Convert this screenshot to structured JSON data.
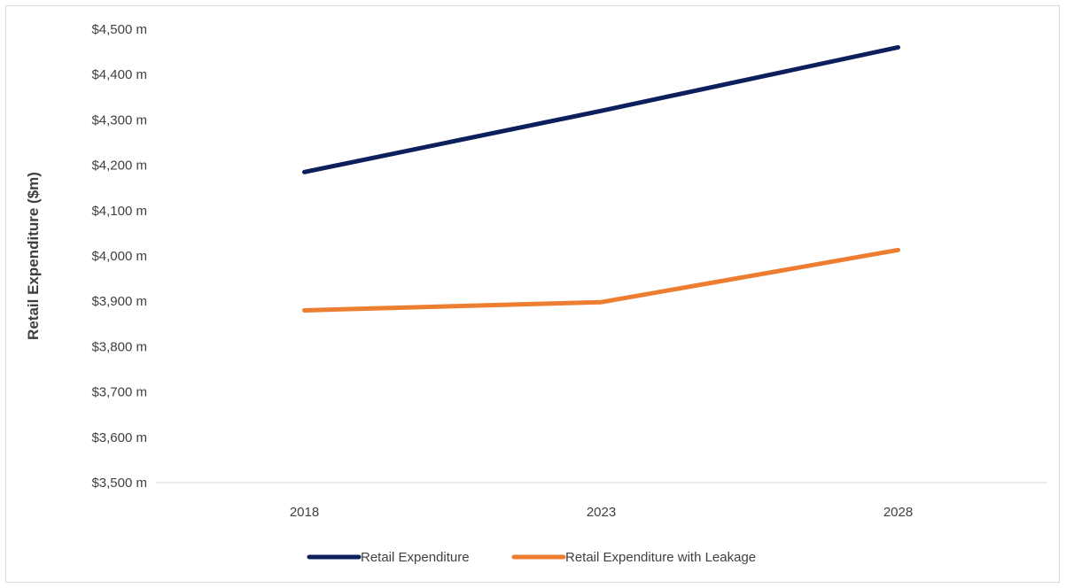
{
  "chart_data": {
    "type": "line",
    "title": "",
    "xlabel": "",
    "ylabel": "Retail Expenditure ($m)",
    "x": [
      "2018",
      "2023",
      "2028"
    ],
    "ylim": [
      3500,
      4500
    ],
    "yticks": [
      3500,
      3600,
      3700,
      3800,
      3900,
      4000,
      4100,
      4200,
      4300,
      4400,
      4500
    ],
    "ytick_labels": [
      "$3,500 m",
      "$3,600 m",
      "$3,700 m",
      "$3,800 m",
      "$3,900 m",
      "$4,000 m",
      "$4,100 m",
      "$4,200 m",
      "$4,300 m",
      "$4,400 m",
      "$4,500 m"
    ],
    "grid": false,
    "legend": "bottom",
    "series": [
      {
        "name": "Retail Expenditure",
        "values": [
          4185,
          4320,
          4460
        ],
        "color": "#0d1f5c"
      },
      {
        "name": "Retail Expenditure with Leakage",
        "values": [
          3880,
          3898,
          4013
        ],
        "color": "#ed7d31"
      }
    ]
  }
}
